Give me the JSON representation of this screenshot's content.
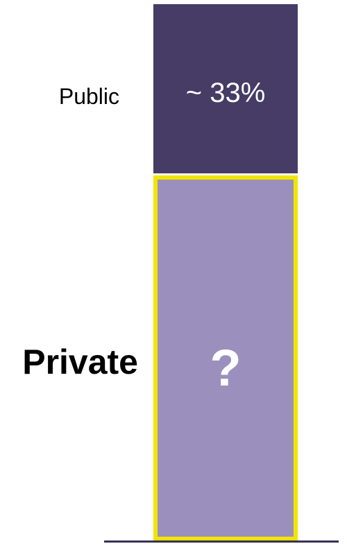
{
  "chart_data": {
    "type": "bar",
    "orientation": "stacked-vertical",
    "segments": [
      {
        "name": "Private",
        "value_label": "?",
        "color": "#9b90bd",
        "highlight_border": "#f2e500",
        "label_emphasis": "bold"
      },
      {
        "name": "Public",
        "value": 33,
        "value_label": "~ 33%",
        "color": "#463c65",
        "label_emphasis": "normal"
      }
    ],
    "baseline": true,
    "colors": {
      "baseline": "#2f2952",
      "value_label_text": "#ffffff",
      "category_label_text": "#000000"
    }
  }
}
